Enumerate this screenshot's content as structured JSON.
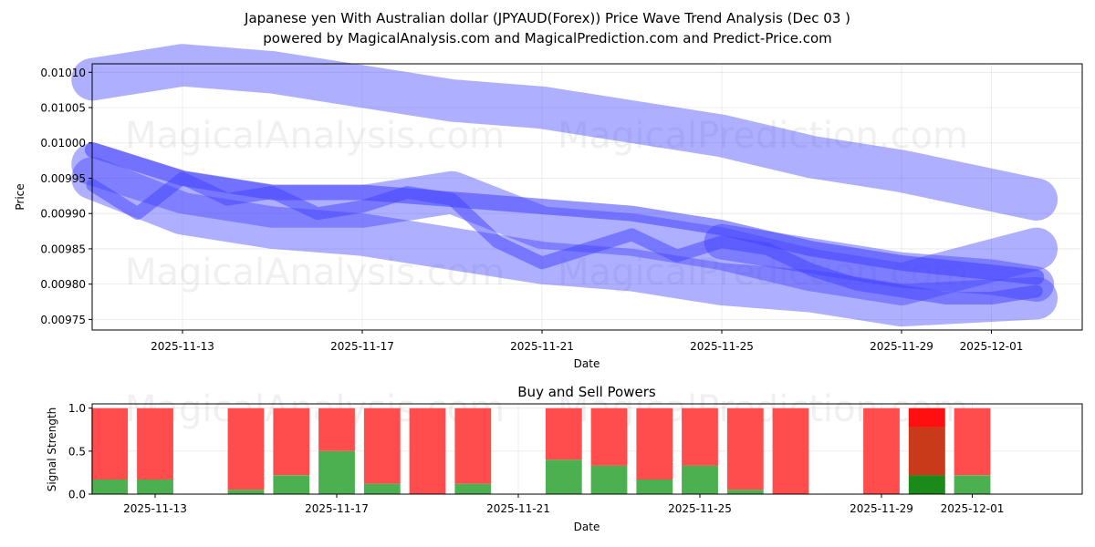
{
  "title_line1": "Japanese yen With Australian dollar (JPYAUD(Forex)) Price Wave Trend Analysis (Dec 03 )",
  "title_line2": "powered by MagicalAnalysis.com and MagicalPrediction.com and Predict-Price.com",
  "watermarks": [
    "MagicalAnalysis.com",
    "MagicalPrediction.com"
  ],
  "chart_data": [
    {
      "type": "area",
      "title": "",
      "xlabel": "Date",
      "ylabel": "Price",
      "x_range": [
        "2025-11-11",
        "2025-12-03"
      ],
      "ylim": [
        0.009735,
        0.010112
      ],
      "grid": true,
      "x_ticks": [
        "2025-11-13",
        "2025-11-17",
        "2025-11-21",
        "2025-11-25",
        "2025-11-29",
        "2025-12-01"
      ],
      "y_ticks": [
        "0.00975",
        "0.00980",
        "0.00985",
        "0.00990",
        "0.00995",
        "0.01000",
        "0.01005",
        "0.01010"
      ],
      "y_tick_values": [
        0.00975,
        0.0098,
        0.00985,
        0.0099,
        0.00995,
        0.01,
        0.01005,
        0.0101
      ],
      "color": "#4040ff",
      "bands": [
        {
          "name": "upper-wave",
          "width": 6e-05,
          "opacity": 0.42,
          "points": [
            [
              "2025-11-11",
              0.01009
            ],
            [
              "2025-11-13",
              0.01011
            ],
            [
              "2025-11-15",
              0.0101
            ],
            [
              "2025-11-17",
              0.01008
            ],
            [
              "2025-11-19",
              0.01006
            ],
            [
              "2025-11-21",
              0.01005
            ],
            [
              "2025-11-23",
              0.01003
            ],
            [
              "2025-11-25",
              0.01001
            ],
            [
              "2025-11-27",
              0.00998
            ],
            [
              "2025-11-29",
              0.00996
            ],
            [
              "2025-12-02",
              0.00992
            ]
          ]
        },
        {
          "name": "upper-trend",
          "width": 2.2e-05,
          "opacity": 0.55,
          "points": [
            [
              "2025-11-11",
              0.00999
            ],
            [
              "2025-11-13",
              0.00995
            ],
            [
              "2025-11-15",
              0.00993
            ],
            [
              "2025-11-17",
              0.00993
            ],
            [
              "2025-11-19",
              0.00992
            ],
            [
              "2025-11-21",
              0.00991
            ],
            [
              "2025-11-23",
              0.0099
            ],
            [
              "2025-11-25",
              0.00988
            ],
            [
              "2025-11-27",
              0.00985
            ],
            [
              "2025-11-29",
              0.00983
            ],
            [
              "2025-12-02",
              0.00981
            ]
          ]
        },
        {
          "name": "middle-wave",
          "width": 6e-05,
          "opacity": 0.42,
          "points": [
            [
              "2025-11-11",
              0.00997
            ],
            [
              "2025-11-13",
              0.00993
            ],
            [
              "2025-11-15",
              0.00991
            ],
            [
              "2025-11-17",
              0.00991
            ],
            [
              "2025-11-19",
              0.00993
            ],
            [
              "2025-11-21",
              0.00988
            ],
            [
              "2025-11-23",
              0.00987
            ],
            [
              "2025-11-25",
              0.00985
            ],
            [
              "2025-11-27",
              0.00982
            ],
            [
              "2025-11-29",
              0.0098
            ],
            [
              "2025-12-02",
              0.00985
            ]
          ]
        },
        {
          "name": "lower-wave",
          "width": 6e-05,
          "opacity": 0.42,
          "points": [
            [
              "2025-11-11",
              0.00995
            ],
            [
              "2025-11-13",
              0.0099
            ],
            [
              "2025-11-15",
              0.00988
            ],
            [
              "2025-11-17",
              0.00987
            ],
            [
              "2025-11-19",
              0.00985
            ],
            [
              "2025-11-21",
              0.00983
            ],
            [
              "2025-11-23",
              0.00982
            ],
            [
              "2025-11-25",
              0.0098
            ],
            [
              "2025-11-27",
              0.00979
            ],
            [
              "2025-11-29",
              0.00977
            ],
            [
              "2025-12-02",
              0.00978
            ]
          ]
        },
        {
          "name": "price-path",
          "width": 1.8e-05,
          "opacity": 0.5,
          "points": [
            [
              "2025-11-11",
              0.00994
            ],
            [
              "2025-11-12",
              0.0099
            ],
            [
              "2025-11-13",
              0.00995
            ],
            [
              "2025-11-14",
              0.00992
            ],
            [
              "2025-11-15",
              0.00993
            ],
            [
              "2025-11-16",
              0.0099
            ],
            [
              "2025-11-17",
              0.00991
            ],
            [
              "2025-11-18",
              0.00993
            ],
            [
              "2025-11-19",
              0.00992
            ],
            [
              "2025-11-20",
              0.00986
            ],
            [
              "2025-11-21",
              0.00983
            ],
            [
              "2025-11-22",
              0.00985
            ],
            [
              "2025-11-23",
              0.00987
            ],
            [
              "2025-11-24",
              0.00984
            ],
            [
              "2025-11-25",
              0.00986
            ],
            [
              "2025-11-26",
              0.00985
            ],
            [
              "2025-11-27",
              0.00982
            ],
            [
              "2025-11-28",
              0.0098
            ],
            [
              "2025-11-29",
              0.00979
            ],
            [
              "2025-11-30",
              0.00978
            ],
            [
              "2025-12-01",
              0.00978
            ],
            [
              "2025-12-02",
              0.00979
            ]
          ]
        },
        {
          "name": "end-bulge",
          "width": 5e-05,
          "opacity": 0.45,
          "points": [
            [
              "2025-11-25",
              0.00986
            ],
            [
              "2025-11-27",
              0.00984
            ],
            [
              "2025-11-29",
              0.00982
            ],
            [
              "2025-12-01",
              0.00981
            ],
            [
              "2025-12-02",
              0.0098
            ]
          ]
        }
      ]
    },
    {
      "type": "bar",
      "title": "Buy and Sell Powers",
      "xlabel": "Date",
      "ylabel": "Signal Strength",
      "x_range": [
        "2025-11-11",
        "2025-12-03"
      ],
      "ylim": [
        0,
        1.05
      ],
      "grid": true,
      "x_ticks": [
        "2025-11-13",
        "2025-11-17",
        "2025-11-21",
        "2025-11-25",
        "2025-11-29",
        "2025-12-01"
      ],
      "y_ticks": [
        "0.0",
        "0.5",
        "1.0"
      ],
      "y_tick_values": [
        0,
        0.5,
        1.0
      ],
      "buy_color": "#4caf50",
      "sell_color": "#ff4d4d",
      "bars": [
        {
          "date": "2025-11-12",
          "buy": 0.17,
          "sell": 0.83
        },
        {
          "date": "2025-11-13",
          "buy": 0.17,
          "sell": 0.83
        },
        {
          "date": "2025-11-15",
          "buy": 0.05,
          "sell": 0.95
        },
        {
          "date": "2025-11-16",
          "buy": 0.22,
          "sell": 0.78
        },
        {
          "date": "2025-11-17",
          "buy": 0.5,
          "sell": 0.5
        },
        {
          "date": "2025-11-18",
          "buy": 0.12,
          "sell": 0.88
        },
        {
          "date": "2025-11-19",
          "buy": 0.0,
          "sell": 1.0
        },
        {
          "date": "2025-11-20",
          "buy": 0.12,
          "sell": 0.88
        },
        {
          "date": "2025-11-22",
          "buy": 0.4,
          "sell": 0.6
        },
        {
          "date": "2025-11-23",
          "buy": 0.33,
          "sell": 0.67
        },
        {
          "date": "2025-11-24",
          "buy": 0.17,
          "sell": 0.83
        },
        {
          "date": "2025-11-25",
          "buy": 0.33,
          "sell": 0.67
        },
        {
          "date": "2025-11-26",
          "buy": 0.05,
          "sell": 0.95
        },
        {
          "date": "2025-11-27",
          "buy": 0.0,
          "sell": 1.0
        },
        {
          "date": "2025-11-29",
          "buy": 0.0,
          "sell": 1.0
        },
        {
          "date": "2025-11-30",
          "buy": 0.22,
          "sell": 0.78,
          "highlight": true
        },
        {
          "date": "2025-12-01",
          "buy": 0.22,
          "sell": 0.78
        }
      ]
    }
  ]
}
